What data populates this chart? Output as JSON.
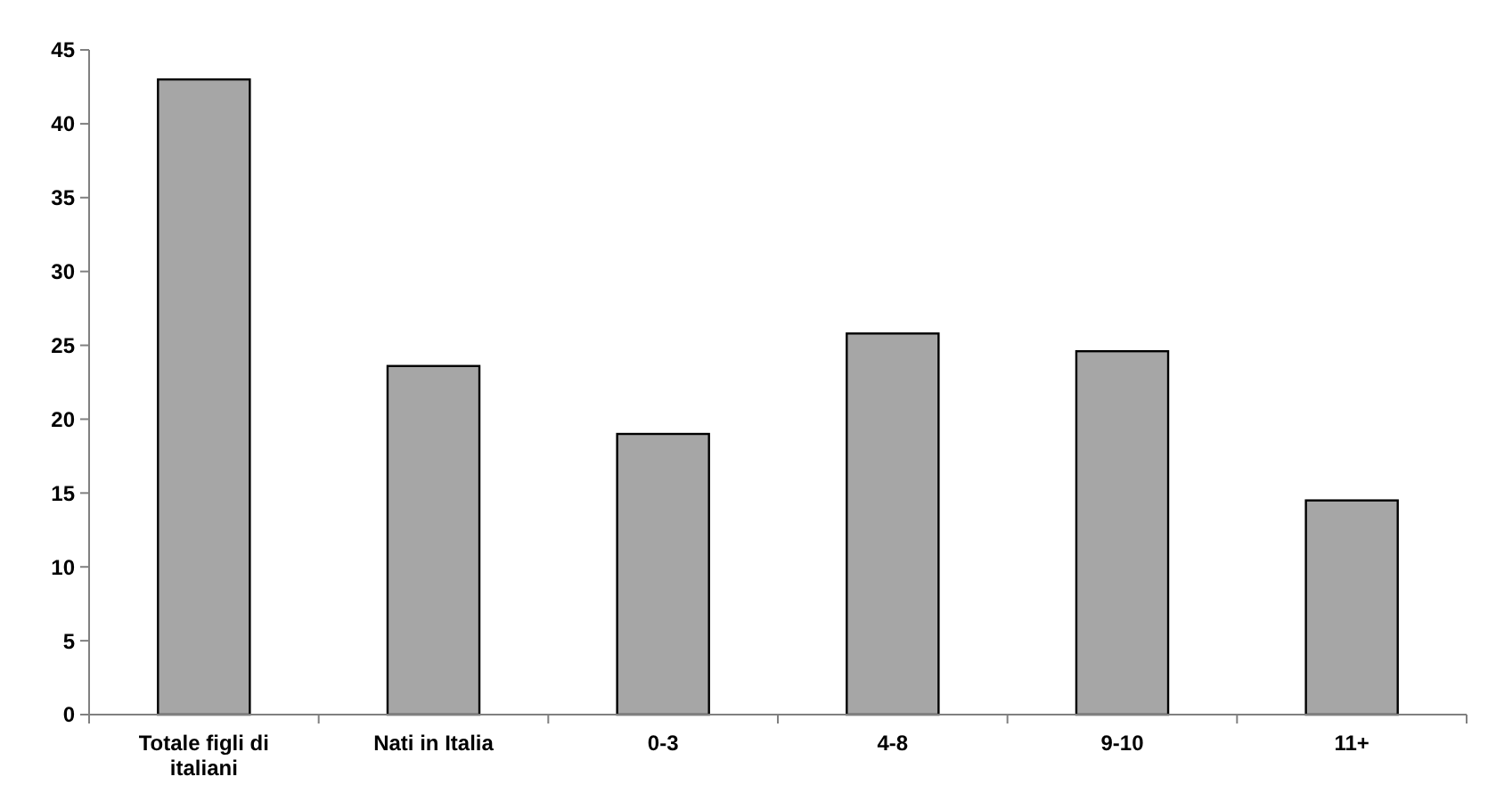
{
  "chart_data": {
    "type": "bar",
    "categories": [
      "Totale figli di italiani",
      "Nati in Italia",
      "0-3",
      "4-8",
      "9-10",
      "11+"
    ],
    "values": [
      43,
      23.6,
      19,
      25.8,
      24.6,
      14.5
    ],
    "color": "#a6a6a6",
    "ylim": [
      0,
      45
    ],
    "yticks": [
      0,
      5,
      10,
      15,
      20,
      25,
      30,
      35,
      40,
      45
    ],
    "grid": false
  }
}
